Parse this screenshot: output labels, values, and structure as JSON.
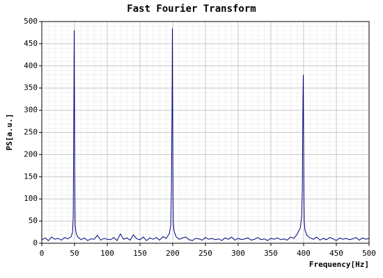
{
  "chart_data": {
    "type": "line",
    "title": "Fast Fourier Transform",
    "x_label": "Frequency[Hz]",
    "y_label": "PS[a.u.]",
    "x": [
      0,
      5,
      10,
      15,
      20,
      25,
      30,
      35,
      40,
      45,
      47,
      48,
      49,
      49.5,
      50,
      50.5,
      51,
      52,
      53,
      55,
      60,
      65,
      70,
      75,
      80,
      85,
      90,
      95,
      100,
      105,
      110,
      115,
      120,
      125,
      130,
      135,
      140,
      145,
      150,
      155,
      160,
      165,
      170,
      175,
      180,
      185,
      190,
      195,
      197,
      198,
      199,
      199.5,
      200,
      200.5,
      201,
      202,
      205,
      210,
      215,
      220,
      225,
      230,
      235,
      240,
      245,
      250,
      255,
      260,
      265,
      270,
      275,
      280,
      285,
      290,
      295,
      300,
      305,
      310,
      315,
      320,
      325,
      330,
      335,
      340,
      345,
      350,
      355,
      360,
      365,
      370,
      375,
      380,
      385,
      390,
      395,
      397,
      398,
      399,
      399.5,
      400,
      400.5,
      401,
      402,
      405,
      410,
      415,
      420,
      425,
      430,
      435,
      440,
      445,
      450,
      455,
      460,
      465,
      470,
      475,
      480,
      485,
      490,
      495,
      500
    ],
    "series": [
      {
        "name": "PS",
        "color": "#000080",
        "values": [
          8,
          12,
          6,
          14,
          9,
          11,
          7,
          13,
          10,
          15,
          25,
          60,
          300,
          480,
          300,
          120,
          40,
          28,
          20,
          14,
          8,
          12,
          6,
          10,
          9,
          18,
          7,
          11,
          9,
          8,
          13,
          6,
          21,
          9,
          12,
          7,
          19,
          10,
          8,
          14,
          6,
          12,
          9,
          13,
          7,
          15,
          11,
          22,
          40,
          120,
          303,
          485,
          290,
          110,
          45,
          28,
          15,
          9,
          12,
          14,
          8,
          6,
          11,
          10,
          7,
          13,
          9,
          11,
          8,
          10,
          6,
          12,
          9,
          14,
          7,
          11,
          8,
          10,
          12,
          7,
          9,
          13,
          8,
          10,
          6,
          11,
          9,
          12,
          8,
          10,
          7,
          14,
          11,
          20,
          35,
          60,
          120,
          320,
          380,
          245,
          110,
          50,
          30,
          18,
          12,
          9,
          14,
          7,
          11,
          8,
          13,
          10,
          6,
          12,
          9,
          11,
          8,
          10,
          13,
          7,
          12,
          9,
          11
        ]
      }
    ],
    "xlim": [
      0,
      500
    ],
    "ylim": [
      0,
      500
    ],
    "xticks": [
      0,
      50,
      100,
      150,
      200,
      250,
      300,
      350,
      400,
      450,
      500
    ],
    "yticks": [
      0,
      50,
      100,
      150,
      200,
      250,
      300,
      350,
      400,
      450,
      500
    ],
    "grid": true
  }
}
